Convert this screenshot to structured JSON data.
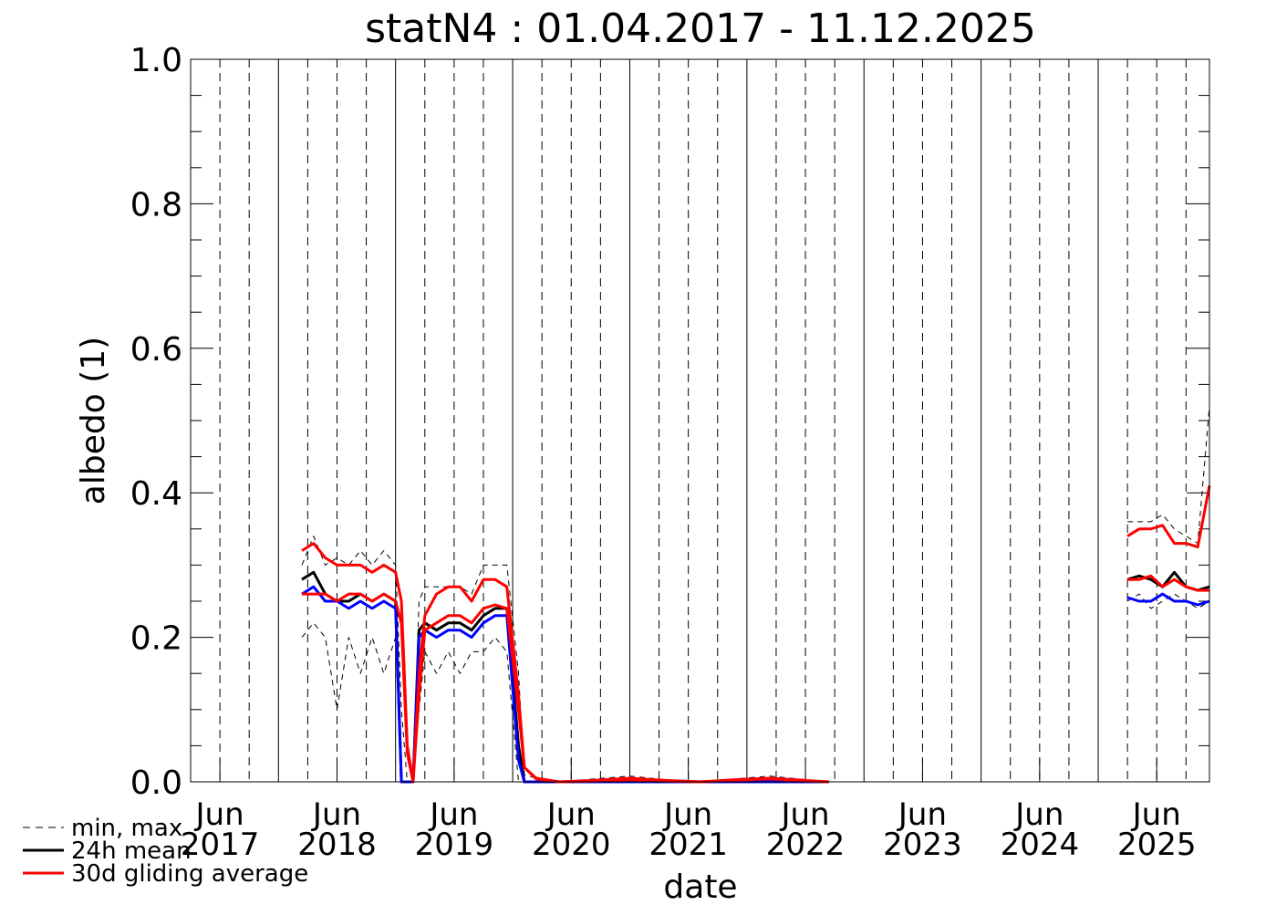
{
  "chart_data": {
    "type": "line",
    "title": "statN4 : 01.04.2017 - 11.12.2025",
    "x_label": "date",
    "y_label": "albedo (1)",
    "xlim": [
      2017.25,
      2025.95
    ],
    "ylim": [
      0,
      1
    ],
    "xticks": [
      {
        "value": 2017.5,
        "label": "Jun\n2017"
      },
      {
        "value": 2018.5,
        "label": "Jun\n2018"
      },
      {
        "value": 2019.5,
        "label": "Jun\n2019"
      },
      {
        "value": 2020.5,
        "label": "Jun\n2020"
      },
      {
        "value": 2021.5,
        "label": "Jun\n2021"
      },
      {
        "value": 2022.5,
        "label": "Jun\n2022"
      },
      {
        "value": 2023.5,
        "label": "Jun\n2023"
      },
      {
        "value": 2024.5,
        "label": "Jun\n2024"
      },
      {
        "value": 2025.5,
        "label": "Jun\n2025"
      }
    ],
    "yticks": [
      {
        "value": 0,
        "label": "0.0"
      },
      {
        "value": 0.2,
        "label": "0.2"
      },
      {
        "value": 0.4,
        "label": "0.4"
      },
      {
        "value": 0.6,
        "label": "0.6"
      },
      {
        "value": 0.8,
        "label": "0.8"
      },
      {
        "value": 1,
        "label": "1.0"
      }
    ],
    "yminor": [
      0.05,
      0.1,
      0.15,
      0.25,
      0.3,
      0.35,
      0.45,
      0.5,
      0.55,
      0.65,
      0.7,
      0.75,
      0.85,
      0.9,
      0.95
    ],
    "xgrid_major": [
      2018,
      2019,
      2020,
      2021,
      2022,
      2023,
      2024,
      2025
    ],
    "xgrid_minor": [
      2017.5,
      2017.75,
      2018.25,
      2018.5,
      2018.75,
      2019.25,
      2019.5,
      2019.75,
      2020.25,
      2020.5,
      2020.75,
      2021.25,
      2021.5,
      2021.75,
      2022.25,
      2022.5,
      2022.75,
      2023.25,
      2023.5,
      2023.75,
      2024.25,
      2024.5,
      2024.75,
      2025.25,
      2025.5,
      2025.75
    ],
    "x": [
      2018.2,
      2018.3,
      2018.4,
      2018.5,
      2018.6,
      2018.7,
      2018.8,
      2018.9,
      2019.0,
      2019.05,
      2019.1,
      2019.15,
      2019.2,
      2019.25,
      2019.35,
      2019.45,
      2019.55,
      2019.65,
      2019.75,
      2019.85,
      2019.95,
      2020.05,
      2020.1,
      2020.2,
      2020.4,
      2020.7,
      2021.0,
      2021.3,
      2021.6,
      2021.9,
      2022.2,
      2022.5,
      2022.7,
      2024.0,
      2025.25,
      2025.35,
      2025.45,
      2025.55,
      2025.65,
      2025.75,
      2025.85,
      2025.95
    ],
    "series": [
      {
        "name": "min, max",
        "color": "#000000",
        "dash": true,
        "width": 1,
        "values": [
          0.3,
          0.34,
          0.3,
          0.31,
          0.3,
          0.32,
          0.3,
          0.32,
          0.3,
          0.1,
          0.0,
          0.0,
          0.25,
          0.27,
          0.27,
          0.27,
          0.27,
          0.26,
          0.3,
          0.3,
          0.3,
          0.15,
          0.01,
          0.005,
          0.0,
          0.004,
          0.008,
          0.003,
          0.0,
          0.004,
          0.008,
          0.003,
          0.0,
          null,
          0.36,
          0.36,
          0.36,
          0.37,
          0.35,
          0.34,
          0.33,
          0.52
        ]
      },
      {
        "color": "#000000",
        "dash": true,
        "width": 1,
        "values": [
          0.2,
          0.22,
          0.2,
          0.1,
          0.2,
          0.15,
          0.2,
          0.15,
          0.2,
          0.0,
          0.0,
          0.0,
          0.1,
          0.18,
          0.15,
          0.18,
          0.15,
          0.18,
          0.18,
          0.2,
          0.18,
          0.0,
          0.0,
          0.0,
          0.0,
          0.0,
          0.0,
          0.0,
          0.0,
          0.0,
          0.0,
          0.0,
          0.0,
          null,
          0.25,
          0.26,
          0.24,
          0.25,
          0.26,
          0.25,
          0.24,
          0.25
        ]
      },
      {
        "name": "24h mean",
        "color": "#000000",
        "dash": false,
        "width": 3,
        "values": [
          0.28,
          0.29,
          0.26,
          0.25,
          0.25,
          0.26,
          0.25,
          0.26,
          0.25,
          0.0,
          0.0,
          0.0,
          0.21,
          0.22,
          0.21,
          0.22,
          0.22,
          0.21,
          0.23,
          0.24,
          0.24,
          0.05,
          0.0,
          0.0,
          0.0,
          0.0,
          0.004,
          0.0,
          0.0,
          0.002,
          0.004,
          0.0,
          0.0,
          null,
          0.28,
          0.285,
          0.28,
          0.27,
          0.29,
          0.27,
          0.265,
          0.27
        ]
      },
      {
        "color": "#0000ff",
        "dash": false,
        "width": 3,
        "values": [
          0.26,
          0.27,
          0.25,
          0.25,
          0.24,
          0.25,
          0.24,
          0.25,
          0.24,
          0.0,
          0.0,
          0.0,
          0.2,
          0.21,
          0.2,
          0.21,
          0.21,
          0.2,
          0.22,
          0.23,
          0.23,
          0.03,
          0.0,
          0.0,
          0.0,
          0.0,
          0.0,
          0.0,
          0.0,
          0.0,
          0.0,
          0.0,
          0.0,
          null,
          0.255,
          0.25,
          0.25,
          0.26,
          0.25,
          0.25,
          0.245,
          0.25
        ]
      },
      {
        "name": "30d gliding average",
        "color": "#ff0000",
        "dash": false,
        "width": 3,
        "values": [
          0.32,
          0.33,
          0.31,
          0.3,
          0.3,
          0.3,
          0.29,
          0.3,
          0.29,
          0.25,
          0.05,
          0.0,
          0.15,
          0.23,
          0.26,
          0.27,
          0.27,
          0.25,
          0.28,
          0.28,
          0.27,
          0.12,
          0.02,
          0.005,
          0.0,
          0.002,
          0.005,
          0.002,
          0.0,
          0.003,
          0.005,
          0.002,
          0.0,
          null,
          0.34,
          0.35,
          0.35,
          0.355,
          0.33,
          0.33,
          0.325,
          0.41
        ]
      },
      {
        "color": "#ff0000",
        "dash": false,
        "width": 3,
        "values": [
          0.26,
          0.26,
          0.26,
          0.25,
          0.26,
          0.26,
          0.25,
          0.26,
          0.25,
          0.22,
          0.04,
          0.0,
          0.12,
          0.21,
          0.22,
          0.23,
          0.23,
          0.22,
          0.24,
          0.245,
          0.24,
          0.1,
          0.02,
          0.004,
          0.0,
          0.001,
          0.003,
          0.001,
          0.0,
          0.002,
          0.004,
          0.001,
          0.0,
          null,
          0.28,
          0.28,
          0.285,
          0.27,
          0.28,
          0.27,
          0.265,
          0.265
        ]
      }
    ]
  }
}
